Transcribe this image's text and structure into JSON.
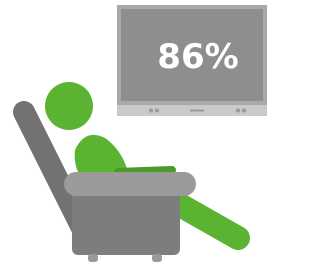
{
  "screen": {
    "text": "86%"
  }
}
